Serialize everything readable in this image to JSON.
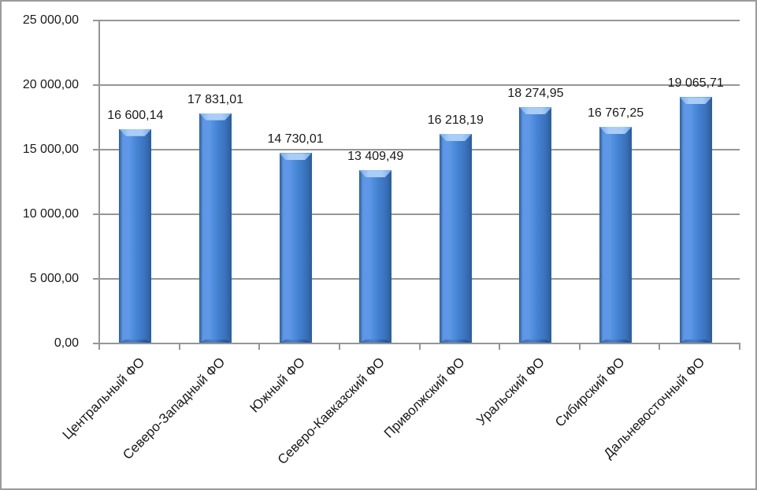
{
  "chart_data": {
    "type": "bar",
    "title": "",
    "xlabel": "",
    "ylabel": "",
    "categories": [
      "Центральный ФО",
      "Северо-Западный ФО",
      "Южный ФО",
      "Северо-Кавказский ФО",
      "Приволжский ФО",
      "Уральский ФО",
      "Сибирский ФО",
      "Дальневосточный ФО"
    ],
    "values": [
      16600.14,
      17831.01,
      14730.01,
      13409.49,
      16218.19,
      18274.95,
      16767.25,
      19065.71
    ],
    "value_labels": [
      "16 600,14",
      "17 831,01",
      "14 730,01",
      "13 409,49",
      "16 218,19",
      "18 274,95",
      "16 767,25",
      "19 065,71"
    ],
    "ylim": [
      0,
      25000
    ],
    "ytick_values": [
      0,
      5000,
      10000,
      15000,
      20000,
      25000
    ],
    "ytick_labels": [
      "0,00",
      "5 000,00",
      "10 000,00",
      "15 000,00",
      "20 000,00",
      "25 000,00"
    ],
    "grid": "horizontal",
    "legend": "none",
    "x_labels_rotation_deg": -45,
    "colors": {
      "bar_fill_mid": "#4583d4",
      "bar_fill_highlight": "#5d97e6",
      "bar_fill_low": "#3a71ba",
      "bar_fill_dark": "#2b5c9c",
      "bar_bevel_light": "#a9cdf7",
      "bar_bevel_mid": "#76abef",
      "gridline": "#969696",
      "text": "#1a1a1a",
      "frame_border": "#9b9b9b",
      "background": "#ffffff"
    }
  }
}
